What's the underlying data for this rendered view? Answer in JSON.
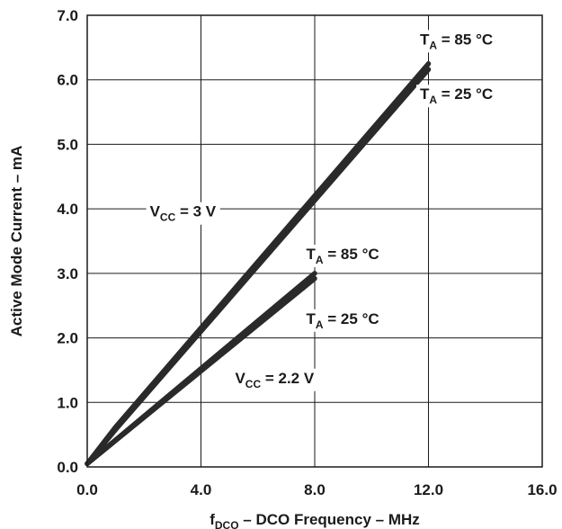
{
  "chart_data": {
    "type": "line",
    "xlabel": "f",
    "xlabel_sub": "DCO",
    "xlabel_rest": " – DCO Frequency – MHz",
    "ylabel": "Active Mode Current – mA",
    "xlim": [
      0,
      16
    ],
    "ylim": [
      0,
      7
    ],
    "x_ticks": [
      0,
      4,
      8,
      12,
      16
    ],
    "x_tick_labels": [
      "0.0",
      "4.0",
      "8.0",
      "12.0",
      "16.0"
    ],
    "y_ticks": [
      0,
      1,
      2,
      3,
      4,
      5,
      6,
      7
    ],
    "y_tick_labels": [
      "0.0",
      "1.0",
      "2.0",
      "3.0",
      "4.0",
      "5.0",
      "6.0",
      "7.0"
    ],
    "grid": true,
    "series": [
      {
        "name": "V_CC = 3 V, T_A = 85 °C",
        "x": [
          0,
          1,
          12
        ],
        "y": [
          0.05,
          0.62,
          6.25
        ]
      },
      {
        "name": "V_CC = 3 V, T_A = 25 °C",
        "x": [
          0,
          1,
          12
        ],
        "y": [
          0.05,
          0.58,
          6.16
        ]
      },
      {
        "name": "V_CC = 2.2 V, T_A = 85 °C",
        "x": [
          0,
          8
        ],
        "y": [
          0.05,
          3.0
        ]
      },
      {
        "name": "V_CC = 2.2 V, T_A = 25 °C",
        "x": [
          0,
          8
        ],
        "y": [
          0.05,
          2.92
        ]
      }
    ],
    "annotations": [
      {
        "id": "vcc3",
        "main": "V",
        "sub": "CC",
        "rest": " = 3 V",
        "x": 2.2,
        "y": 3.88
      },
      {
        "id": "ta85-3v",
        "main": "T",
        "sub": "A",
        "rest": " = 85 °C",
        "x": 11.7,
        "y": 6.55
      },
      {
        "id": "ta25-3v",
        "main": "T",
        "sub": "A",
        "rest": " = 25 °C",
        "x": 11.7,
        "y": 5.7
      },
      {
        "id": "ta85-22v",
        "main": "T",
        "sub": "A",
        "rest": " = 85 °C",
        "x": 7.7,
        "y": 3.22
      },
      {
        "id": "ta25-22v",
        "main": "T",
        "sub": "A",
        "rest": " = 25 °C",
        "x": 7.7,
        "y": 2.22
      },
      {
        "id": "vcc22",
        "main": "V",
        "sub": "CC",
        "rest": " = 2.2 V",
        "x": 5.2,
        "y": 1.3
      }
    ],
    "colors": {
      "line": "#2a2a2a",
      "grid": "#1a1a1a",
      "background": "#ffffff"
    }
  }
}
